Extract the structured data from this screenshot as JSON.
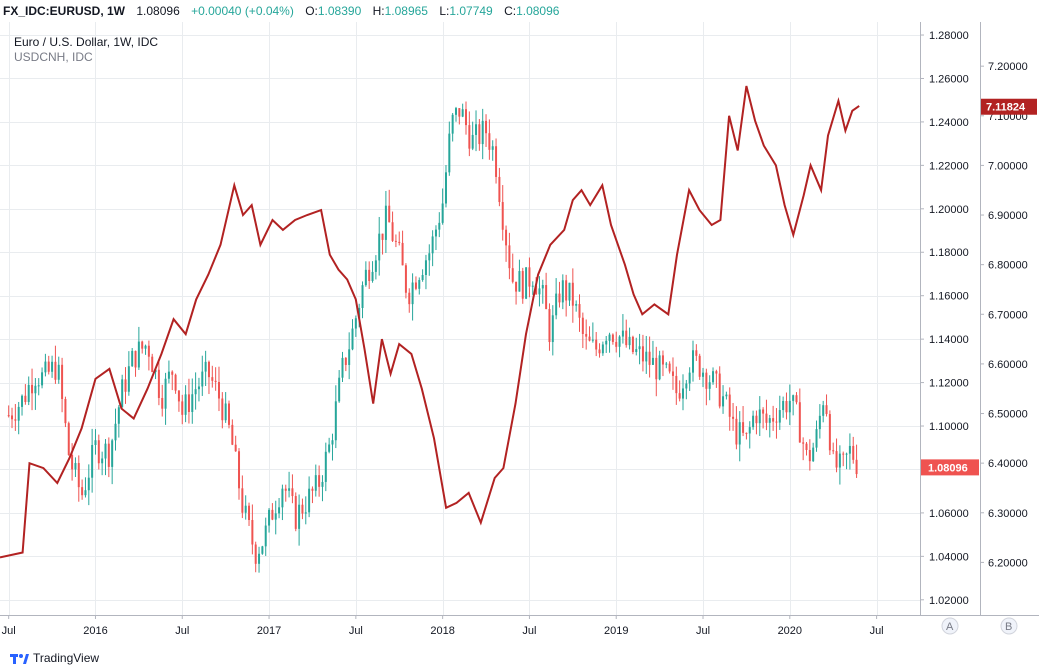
{
  "header": {
    "symbol": "FX_IDC:EURUSD, 1W",
    "last": "1.08096",
    "change": "+0.00040 (+0.04%)",
    "o_label": "O:",
    "o_value": "1.08390",
    "h_label": "H:",
    "h_value": "1.08965",
    "l_label": "L:",
    "l_value": "1.07749",
    "c_label": "C:",
    "c_value": "1.08096"
  },
  "legend": {
    "main": "Euro / U.S. Dollar, 1W, IDC",
    "overlay": "USDCNH, IDC"
  },
  "footer": {
    "brand": "TradingView"
  },
  "colors": {
    "up": "#26a69a",
    "down": "#ef5350",
    "line": "#b22222",
    "grid": "#e9ecef",
    "axis": "#b2b5be",
    "badge_eur": "#ef5350",
    "badge_cnh": "#b22222"
  },
  "chart_data": {
    "type": "candlestick+line",
    "x": {
      "labels": [
        "Jul",
        "2016",
        "Jul",
        "2017",
        "Jul",
        "2018",
        "Jul",
        "2019",
        "Jul",
        "2020",
        "Jul"
      ],
      "label_years": [
        2015.5,
        2016.0,
        2016.5,
        2017.0,
        2017.5,
        2018.0,
        2018.5,
        2019.0,
        2019.5,
        2020.0,
        2020.5
      ],
      "range": [
        2015.45,
        2020.75
      ]
    },
    "scale_a": {
      "ticks": [
        "1.28000",
        "1.26000",
        "1.24000",
        "1.22000",
        "1.20000",
        "1.18000",
        "1.16000",
        "1.14000",
        "1.12000",
        "1.10000",
        "1.08000",
        "1.06000",
        "1.04000",
        "1.02000"
      ],
      "tick_values": [
        1.28,
        1.26,
        1.24,
        1.22,
        1.2,
        1.18,
        1.16,
        1.14,
        1.12,
        1.1,
        1.08,
        1.06,
        1.04,
        1.02
      ],
      "range": [
        1.013,
        1.286
      ],
      "last_label": "1.08096",
      "last_value": 1.08096,
      "button": "A"
    },
    "scale_b": {
      "ticks": [
        "7.20000",
        "7.10000",
        "7.00000",
        "6.90000",
        "6.80000",
        "6.70000",
        "6.60000",
        "6.50000",
        "6.40000",
        "6.30000",
        "6.20000"
      ],
      "tick_values": [
        7.2,
        7.1,
        7.0,
        6.9,
        6.8,
        6.7,
        6.6,
        6.5,
        6.4,
        6.3,
        6.2
      ],
      "range": [
        6.094,
        7.289
      ],
      "last_label": "7.11824",
      "last_value": 7.11824,
      "button": "B"
    },
    "eurusd_weekly_close": [
      [
        2015.5,
        1.105
      ],
      [
        2015.58,
        1.112
      ],
      [
        2015.65,
        1.124
      ],
      [
        2015.7,
        1.122
      ],
      [
        2015.78,
        1.128
      ],
      [
        2015.85,
        1.085
      ],
      [
        2015.92,
        1.068
      ],
      [
        2016.0,
        1.09
      ],
      [
        2016.08,
        1.088
      ],
      [
        2016.15,
        1.115
      ],
      [
        2016.22,
        1.132
      ],
      [
        2016.3,
        1.138
      ],
      [
        2016.38,
        1.114
      ],
      [
        2016.45,
        1.127
      ],
      [
        2016.5,
        1.106
      ],
      [
        2016.58,
        1.118
      ],
      [
        2016.65,
        1.124
      ],
      [
        2016.72,
        1.112
      ],
      [
        2016.78,
        1.095
      ],
      [
        2016.85,
        1.062
      ],
      [
        2016.92,
        1.042
      ],
      [
        2016.97,
        1.048
      ],
      [
        2017.02,
        1.061
      ],
      [
        2017.08,
        1.074
      ],
      [
        2017.15,
        1.058
      ],
      [
        2017.22,
        1.066
      ],
      [
        2017.28,
        1.072
      ],
      [
        2017.35,
        1.091
      ],
      [
        2017.42,
        1.125
      ],
      [
        2017.48,
        1.143
      ],
      [
        2017.55,
        1.168
      ],
      [
        2017.62,
        1.183
      ],
      [
        2017.68,
        1.196
      ],
      [
        2017.75,
        1.178
      ],
      [
        2017.8,
        1.161
      ],
      [
        2017.87,
        1.173
      ],
      [
        2017.93,
        1.181
      ],
      [
        2018.0,
        1.203
      ],
      [
        2018.05,
        1.239
      ],
      [
        2018.1,
        1.246
      ],
      [
        2018.17,
        1.231
      ],
      [
        2018.25,
        1.236
      ],
      [
        2018.3,
        1.225
      ],
      [
        2018.35,
        1.195
      ],
      [
        2018.4,
        1.168
      ],
      [
        2018.47,
        1.165
      ],
      [
        2018.52,
        1.17
      ],
      [
        2018.58,
        1.158
      ],
      [
        2018.62,
        1.142
      ],
      [
        2018.68,
        1.164
      ],
      [
        2018.75,
        1.158
      ],
      [
        2018.82,
        1.138
      ],
      [
        2018.88,
        1.135
      ],
      [
        2018.95,
        1.145
      ],
      [
        2019.02,
        1.141
      ],
      [
        2019.08,
        1.135
      ],
      [
        2019.15,
        1.132
      ],
      [
        2019.22,
        1.128
      ],
      [
        2019.3,
        1.122
      ],
      [
        2019.35,
        1.115
      ],
      [
        2019.42,
        1.13
      ],
      [
        2019.48,
        1.128
      ],
      [
        2019.55,
        1.121
      ],
      [
        2019.62,
        1.112
      ],
      [
        2019.68,
        1.098
      ],
      [
        2019.75,
        1.093
      ],
      [
        2019.8,
        1.107
      ],
      [
        2019.87,
        1.101
      ],
      [
        2019.93,
        1.108
      ],
      [
        2020.0,
        1.112
      ],
      [
        2020.05,
        1.102
      ],
      [
        2020.1,
        1.084
      ],
      [
        2020.15,
        1.093
      ],
      [
        2020.2,
        1.117
      ],
      [
        2020.25,
        1.082
      ],
      [
        2020.3,
        1.08
      ],
      [
        2020.35,
        1.089
      ],
      [
        2020.4,
        1.081
      ]
    ],
    "usdcnh_weekly_close": [
      [
        2015.45,
        6.21
      ],
      [
        2015.58,
        6.22
      ],
      [
        2015.62,
        6.4
      ],
      [
        2015.7,
        6.39
      ],
      [
        2015.78,
        6.36
      ],
      [
        2015.85,
        6.41
      ],
      [
        2015.92,
        6.47
      ],
      [
        2016.0,
        6.57
      ],
      [
        2016.08,
        6.59
      ],
      [
        2016.15,
        6.51
      ],
      [
        2016.22,
        6.49
      ],
      [
        2016.3,
        6.55
      ],
      [
        2016.38,
        6.62
      ],
      [
        2016.45,
        6.69
      ],
      [
        2016.52,
        6.66
      ],
      [
        2016.58,
        6.73
      ],
      [
        2016.65,
        6.78
      ],
      [
        2016.72,
        6.84
      ],
      [
        2016.8,
        6.96
      ],
      [
        2016.85,
        6.9
      ],
      [
        2016.9,
        6.92
      ],
      [
        2016.95,
        6.84
      ],
      [
        2017.02,
        6.89
      ],
      [
        2017.08,
        6.87
      ],
      [
        2017.15,
        6.89
      ],
      [
        2017.22,
        6.9
      ],
      [
        2017.3,
        6.91
      ],
      [
        2017.35,
        6.82
      ],
      [
        2017.4,
        6.79
      ],
      [
        2017.45,
        6.77
      ],
      [
        2017.5,
        6.73
      ],
      [
        2017.55,
        6.63
      ],
      [
        2017.6,
        6.52
      ],
      [
        2017.65,
        6.65
      ],
      [
        2017.7,
        6.58
      ],
      [
        2017.75,
        6.64
      ],
      [
        2017.82,
        6.62
      ],
      [
        2017.88,
        6.55
      ],
      [
        2017.95,
        6.45
      ],
      [
        2018.02,
        6.31
      ],
      [
        2018.08,
        6.32
      ],
      [
        2018.15,
        6.34
      ],
      [
        2018.22,
        6.28
      ],
      [
        2018.3,
        6.37
      ],
      [
        2018.35,
        6.39
      ],
      [
        2018.42,
        6.52
      ],
      [
        2018.48,
        6.66
      ],
      [
        2018.55,
        6.78
      ],
      [
        2018.62,
        6.84
      ],
      [
        2018.7,
        6.87
      ],
      [
        2018.75,
        6.93
      ],
      [
        2018.8,
        6.95
      ],
      [
        2018.85,
        6.92
      ],
      [
        2018.92,
        6.96
      ],
      [
        2018.97,
        6.88
      ],
      [
        2019.05,
        6.8
      ],
      [
        2019.1,
        6.74
      ],
      [
        2019.15,
        6.7
      ],
      [
        2019.22,
        6.72
      ],
      [
        2019.3,
        6.7
      ],
      [
        2019.35,
        6.82
      ],
      [
        2019.42,
        6.95
      ],
      [
        2019.48,
        6.91
      ],
      [
        2019.55,
        6.88
      ],
      [
        2019.6,
        6.89
      ],
      [
        2019.65,
        7.1
      ],
      [
        2019.7,
        7.03
      ],
      [
        2019.75,
        7.16
      ],
      [
        2019.8,
        7.09
      ],
      [
        2019.85,
        7.04
      ],
      [
        2019.92,
        7.0
      ],
      [
        2019.97,
        6.92
      ],
      [
        2020.02,
        6.86
      ],
      [
        2020.08,
        6.94
      ],
      [
        2020.12,
        7.0
      ],
      [
        2020.18,
        6.95
      ],
      [
        2020.22,
        7.06
      ],
      [
        2020.28,
        7.13
      ],
      [
        2020.32,
        7.07
      ],
      [
        2020.36,
        7.11
      ],
      [
        2020.4,
        7.12
      ]
    ]
  }
}
